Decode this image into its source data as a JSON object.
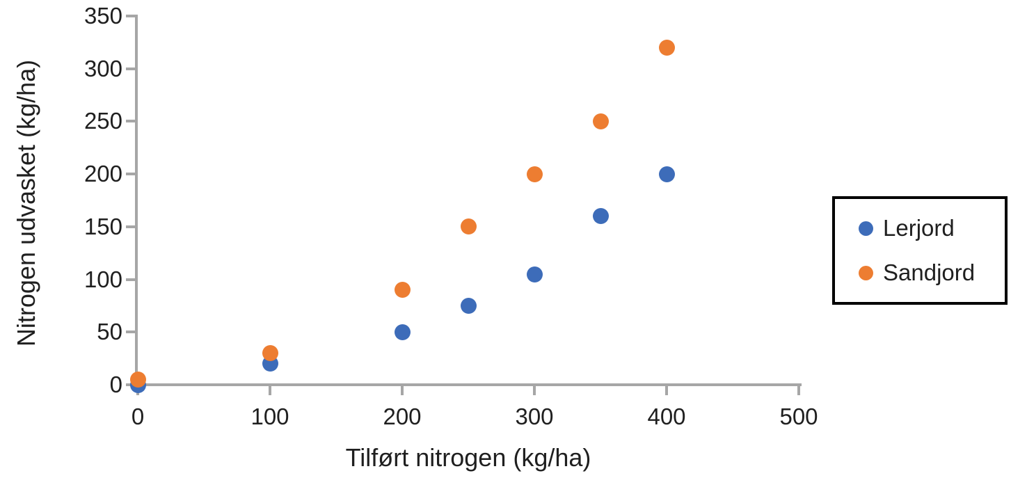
{
  "chart_data": {
    "type": "scatter",
    "title": "",
    "xlabel": "Tilført nitrogen (kg/ha)",
    "ylabel": "Nitrogen udvasket (kg/ha)",
    "xlim": [
      0,
      500
    ],
    "ylim": [
      0,
      350
    ],
    "x_ticks": [
      0,
      100,
      200,
      300,
      400,
      500
    ],
    "y_ticks": [
      0,
      50,
      100,
      150,
      200,
      250,
      300,
      350
    ],
    "grid": false,
    "legend_position": "right-middle",
    "series": [
      {
        "name": "Lerjord",
        "color": "#3D6CB9",
        "points": [
          [
            0,
            0
          ],
          [
            100,
            20
          ],
          [
            200,
            50
          ],
          [
            250,
            75
          ],
          [
            300,
            105
          ],
          [
            350,
            160
          ],
          [
            400,
            200
          ]
        ]
      },
      {
        "name": "Sandjord",
        "color": "#ED7D31",
        "points": [
          [
            0,
            5
          ],
          [
            100,
            30
          ],
          [
            200,
            90
          ],
          [
            250,
            150
          ],
          [
            300,
            200
          ],
          [
            350,
            250
          ],
          [
            400,
            320
          ]
        ]
      }
    ],
    "colors": {
      "axis": "#A6A6A6",
      "text": "#1F1F1F",
      "legend_border": "#000000",
      "background": "#FFFFFF"
    }
  }
}
